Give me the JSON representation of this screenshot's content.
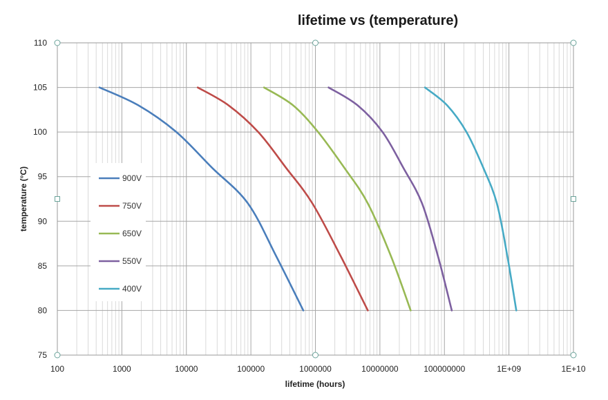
{
  "chart_data": {
    "type": "line",
    "title": "lifetime vs (temperature)",
    "xlabel": "lifetime (hours)",
    "ylabel": "temperature (°C)",
    "x_scale": "log",
    "xlim": [
      100,
      10000000000
    ],
    "ylim": [
      75,
      110
    ],
    "x_tick_labels": [
      "100",
      "1000",
      "10000",
      "100000",
      "1000000",
      "10000000",
      "100000000",
      "1E+09",
      "1E+10"
    ],
    "y_tick_labels": [
      "75",
      "80",
      "85",
      "90",
      "95",
      "100",
      "105",
      "110"
    ],
    "y_ticks": [
      75,
      80,
      85,
      90,
      95,
      100,
      105,
      110
    ],
    "grid": true,
    "legend_position": "left",
    "series": [
      {
        "name": "900V",
        "color": "#4a7ebb",
        "points": [
          [
            450,
            105
          ],
          [
            1800,
            103
          ],
          [
            7000,
            100
          ],
          [
            25000,
            96
          ],
          [
            90000,
            92
          ],
          [
            250000,
            86
          ],
          [
            650000,
            80
          ]
        ]
      },
      {
        "name": "750V",
        "color": "#be4b48",
        "points": [
          [
            15000,
            105
          ],
          [
            45000,
            103
          ],
          [
            130000,
            100
          ],
          [
            350000,
            96
          ],
          [
            900000,
            92
          ],
          [
            2500000,
            86
          ],
          [
            6500000,
            80
          ]
        ]
      },
      {
        "name": "650V",
        "color": "#98b954",
        "points": [
          [
            160000,
            105
          ],
          [
            450000,
            103
          ],
          [
            1100000,
            100
          ],
          [
            2800000,
            96
          ],
          [
            6500000,
            92
          ],
          [
            15000000,
            86
          ],
          [
            30000000,
            80
          ]
        ]
      },
      {
        "name": "550V",
        "color": "#7d60a0",
        "points": [
          [
            1600000,
            105
          ],
          [
            4500000,
            103
          ],
          [
            11000000,
            100
          ],
          [
            23000000,
            96
          ],
          [
            45000000,
            92
          ],
          [
            80000000,
            86
          ],
          [
            130000000,
            80
          ]
        ]
      },
      {
        "name": "400V",
        "color": "#46aac5",
        "points": [
          [
            50000000,
            105
          ],
          [
            110000000,
            103
          ],
          [
            220000000,
            100
          ],
          [
            400000000,
            96
          ],
          [
            650000000,
            92
          ],
          [
            950000000,
            86
          ],
          [
            1300000000,
            80
          ]
        ]
      }
    ]
  }
}
